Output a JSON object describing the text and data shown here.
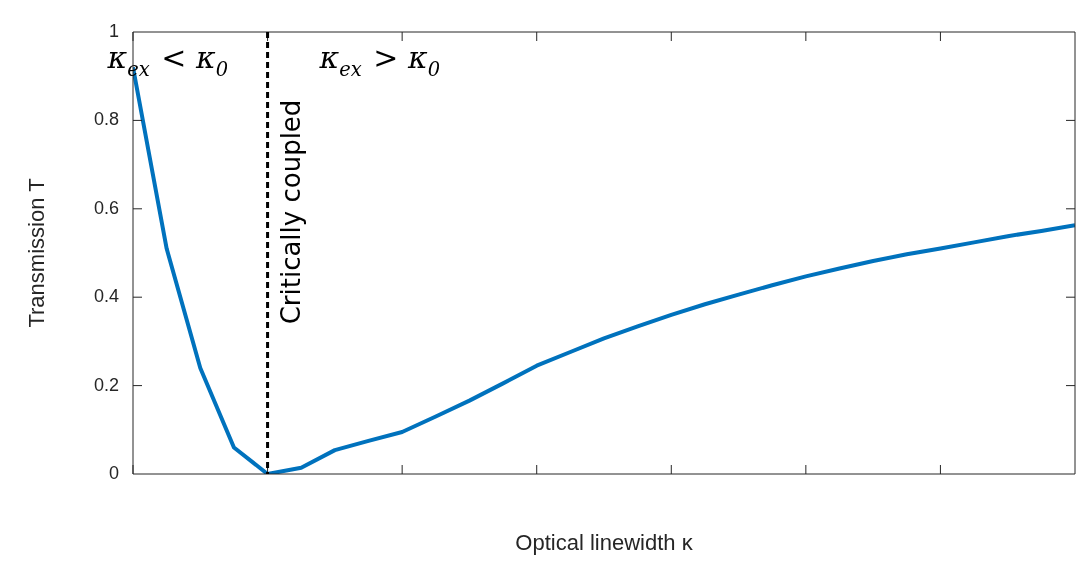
{
  "chart_data": {
    "type": "line",
    "xlabel": "Optical linewidth κ",
    "ylabel": "Transmission T",
    "categories": [
      null,
      null,
      null,
      null,
      null,
      null,
      null,
      null,
      null,
      null,
      null,
      null,
      null,
      null,
      null,
      null,
      null,
      null,
      null,
      null,
      null,
      null,
      null,
      null,
      null,
      null,
      null,
      null,
      null
    ],
    "series": [
      {
        "color": "#0072bd",
        "values": [
          0.92,
          0.51,
          0.24,
          0.06,
          0,
          0.014,
          0.054,
          0.075,
          0.095,
          0.13,
          0.166,
          0.205,
          0.245,
          0.276,
          0.307,
          0.334,
          0.36,
          0.384,
          0.406,
          0.427,
          0.447,
          0.465,
          0.482,
          0.497,
          0.51,
          0.524,
          0.538,
          0.55,
          0.563
        ]
      }
    ],
    "ylim": [
      0,
      1
    ],
    "yticks": [
      0,
      0.2,
      0.4,
      0.6,
      0.8,
      1
    ],
    "tick_labels": "y",
    "legend": false,
    "marker": "none",
    "line_style": "solid",
    "annotations": [
      "κ$_{ex}$ < κ$_{0}$",
      "κ$_{ex}$ > κ$_{0}$",
      "Critically coupled"
    ]
  }
}
